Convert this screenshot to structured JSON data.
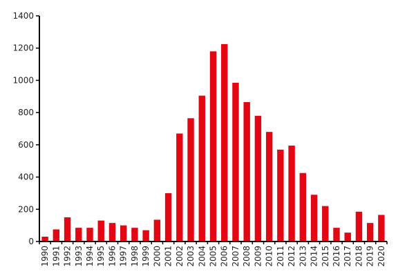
{
  "chart_data": {
    "type": "bar",
    "title": "",
    "xlabel": "",
    "ylabel": "",
    "ylim": [
      0,
      1400
    ],
    "yticks": [
      0,
      200,
      400,
      600,
      800,
      1000,
      1200,
      1400
    ],
    "ytick_labels": [
      "0",
      "200",
      "400",
      "600",
      "800",
      "1000",
      "1200",
      "1400"
    ],
    "grid": false,
    "legend": "none",
    "bar_color": "#e30613",
    "categories": [
      "1990",
      "1991",
      "1992",
      "1993",
      "1994",
      "1995",
      "1996",
      "1997",
      "1998",
      "1999",
      "2000",
      "2001",
      "2002",
      "2003",
      "2004",
      "2005",
      "2006",
      "2007",
      "2008",
      "2009",
      "2010",
      "2011",
      "2012",
      "2013",
      "2014",
      "2015",
      "2016",
      "2017",
      "2018",
      "2019",
      "2020"
    ],
    "values": [
      30,
      75,
      150,
      85,
      85,
      130,
      115,
      100,
      85,
      70,
      135,
      300,
      670,
      765,
      905,
      1180,
      1225,
      985,
      865,
      780,
      680,
      570,
      595,
      425,
      290,
      220,
      85,
      55,
      185,
      115,
      165
    ]
  }
}
